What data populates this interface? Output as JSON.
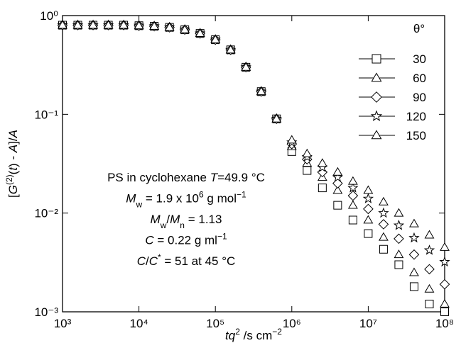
{
  "chart_data": {
    "type": "scatter",
    "y_label": [
      {
        "text": "[",
        "style": "normal"
      },
      {
        "text": "G",
        "style": "italic"
      },
      {
        "text": "(2)",
        "style": "sup"
      },
      {
        "text": "(",
        "style": "normal"
      },
      {
        "text": "t",
        "style": "italic"
      },
      {
        "text": ") - ",
        "style": "normal"
      },
      {
        "text": "A",
        "style": "italic"
      },
      {
        "text": "]/",
        "style": "normal"
      },
      {
        "text": "A",
        "style": "italic"
      }
    ],
    "x_label": [
      {
        "text": "tq",
        "style": "italic"
      },
      {
        "text": "2",
        "style": "sup"
      },
      {
        "text": " /s cm",
        "style": "normal"
      },
      {
        "text": "−2",
        "style": "sup"
      }
    ],
    "log_x": true,
    "log_y": true,
    "xlim": [
      1000,
      100000000
    ],
    "ylim": [
      0.001,
      1
    ],
    "xticks": [
      {
        "value": 1000,
        "label": "10³"
      },
      {
        "value": 10000,
        "label": "10⁴"
      },
      {
        "value": 100000,
        "label": "10⁵"
      },
      {
        "value": 1000000,
        "label": "10⁶"
      },
      {
        "value": 10000000,
        "label": "10⁷"
      },
      {
        "value": 100000000,
        "label": "10⁸"
      }
    ],
    "yticks": [
      {
        "value": 0.001,
        "label": "10⁻³"
      },
      {
        "value": 0.01,
        "label": "10⁻²"
      },
      {
        "value": 0.1,
        "label": "10⁻¹"
      },
      {
        "value": 1,
        "label": "10⁰"
      }
    ],
    "legend_title": "θ°",
    "legend_position": "upper right",
    "x": [
      1000,
      1585,
      2512,
      3981,
      6310,
      10000,
      15850,
      25120,
      39810,
      63100,
      100000,
      158500,
      251200,
      398100,
      631000,
      1000000,
      1585000,
      2512000,
      3981000,
      6310000,
      10000000,
      15850000,
      25120000,
      39810000,
      63100000,
      100000000
    ],
    "series": [
      {
        "name": "30",
        "marker": "square",
        "color": "#000000",
        "values": [
          0.8,
          0.8,
          0.8,
          0.8,
          0.8,
          0.79,
          0.78,
          0.76,
          0.72,
          0.66,
          0.57,
          0.45,
          0.3,
          0.17,
          0.09,
          0.042,
          0.027,
          0.018,
          0.012,
          0.0085,
          0.0062,
          0.0043,
          0.003,
          0.0018,
          0.0012,
          0.001
        ]
      },
      {
        "name": "60",
        "marker": "triangle",
        "color": "#000000",
        "values": [
          0.8,
          0.8,
          0.8,
          0.8,
          0.8,
          0.79,
          0.78,
          0.76,
          0.72,
          0.66,
          0.57,
          0.45,
          0.3,
          0.17,
          0.09,
          0.047,
          0.032,
          0.023,
          0.017,
          0.012,
          0.0085,
          0.0057,
          0.0038,
          0.0025,
          0.0017,
          0.0012
        ]
      },
      {
        "name": "90",
        "marker": "diamond",
        "color": "#000000",
        "values": [
          0.8,
          0.8,
          0.8,
          0.8,
          0.8,
          0.79,
          0.78,
          0.76,
          0.72,
          0.66,
          0.57,
          0.45,
          0.3,
          0.17,
          0.09,
          0.05,
          0.035,
          0.026,
          0.02,
          0.015,
          0.011,
          0.0077,
          0.0055,
          0.0038,
          0.0027,
          0.0019
        ]
      },
      {
        "name": "120",
        "marker": "star",
        "color": "#000000",
        "values": [
          0.8,
          0.8,
          0.8,
          0.8,
          0.8,
          0.79,
          0.78,
          0.76,
          0.72,
          0.66,
          0.57,
          0.45,
          0.3,
          0.17,
          0.09,
          0.052,
          0.037,
          0.029,
          0.023,
          0.018,
          0.014,
          0.01,
          0.0075,
          0.0056,
          0.0042,
          0.0032
        ]
      },
      {
        "name": "150",
        "marker": "triangle",
        "color": "#000000",
        "values": [
          0.8,
          0.8,
          0.8,
          0.8,
          0.8,
          0.79,
          0.78,
          0.76,
          0.72,
          0.66,
          0.57,
          0.45,
          0.3,
          0.17,
          0.09,
          0.055,
          0.04,
          0.032,
          0.026,
          0.021,
          0.017,
          0.013,
          0.01,
          0.0078,
          0.006,
          0.0045
        ]
      }
    ],
    "annotations": [
      [
        {
          "text": "PS in cyclohexane ",
          "style": "normal"
        },
        {
          "text": "T",
          "style": "italic"
        },
        {
          "text": "=49.9 °C",
          "style": "normal"
        }
      ],
      [
        {
          "text": "M",
          "style": "italic"
        },
        {
          "text": "w",
          "style": "sub"
        },
        {
          "text": " = 1.9 x 10",
          "style": "normal"
        },
        {
          "text": "6",
          "style": "sup"
        },
        {
          "text": " g mol",
          "style": "normal"
        },
        {
          "text": "−1",
          "style": "sup"
        }
      ],
      [
        {
          "text": "M",
          "style": "italic"
        },
        {
          "text": "w",
          "style": "sub"
        },
        {
          "text": "/",
          "style": "normal"
        },
        {
          "text": "M",
          "style": "italic"
        },
        {
          "text": "n",
          "style": "sub"
        },
        {
          "text": " = 1.13",
          "style": "normal"
        }
      ],
      [
        {
          "text": "C",
          "style": "italic"
        },
        {
          "text": " = 0.22 g ml",
          "style": "normal"
        },
        {
          "text": "−1",
          "style": "sup"
        }
      ],
      [
        {
          "text": "C",
          "style": "italic"
        },
        {
          "text": "/",
          "style": "normal"
        },
        {
          "text": "C",
          "style": "italic"
        },
        {
          "text": "*",
          "style": "sup"
        },
        {
          "text": " = 51 at 45 °C",
          "style": "normal"
        }
      ]
    ]
  }
}
